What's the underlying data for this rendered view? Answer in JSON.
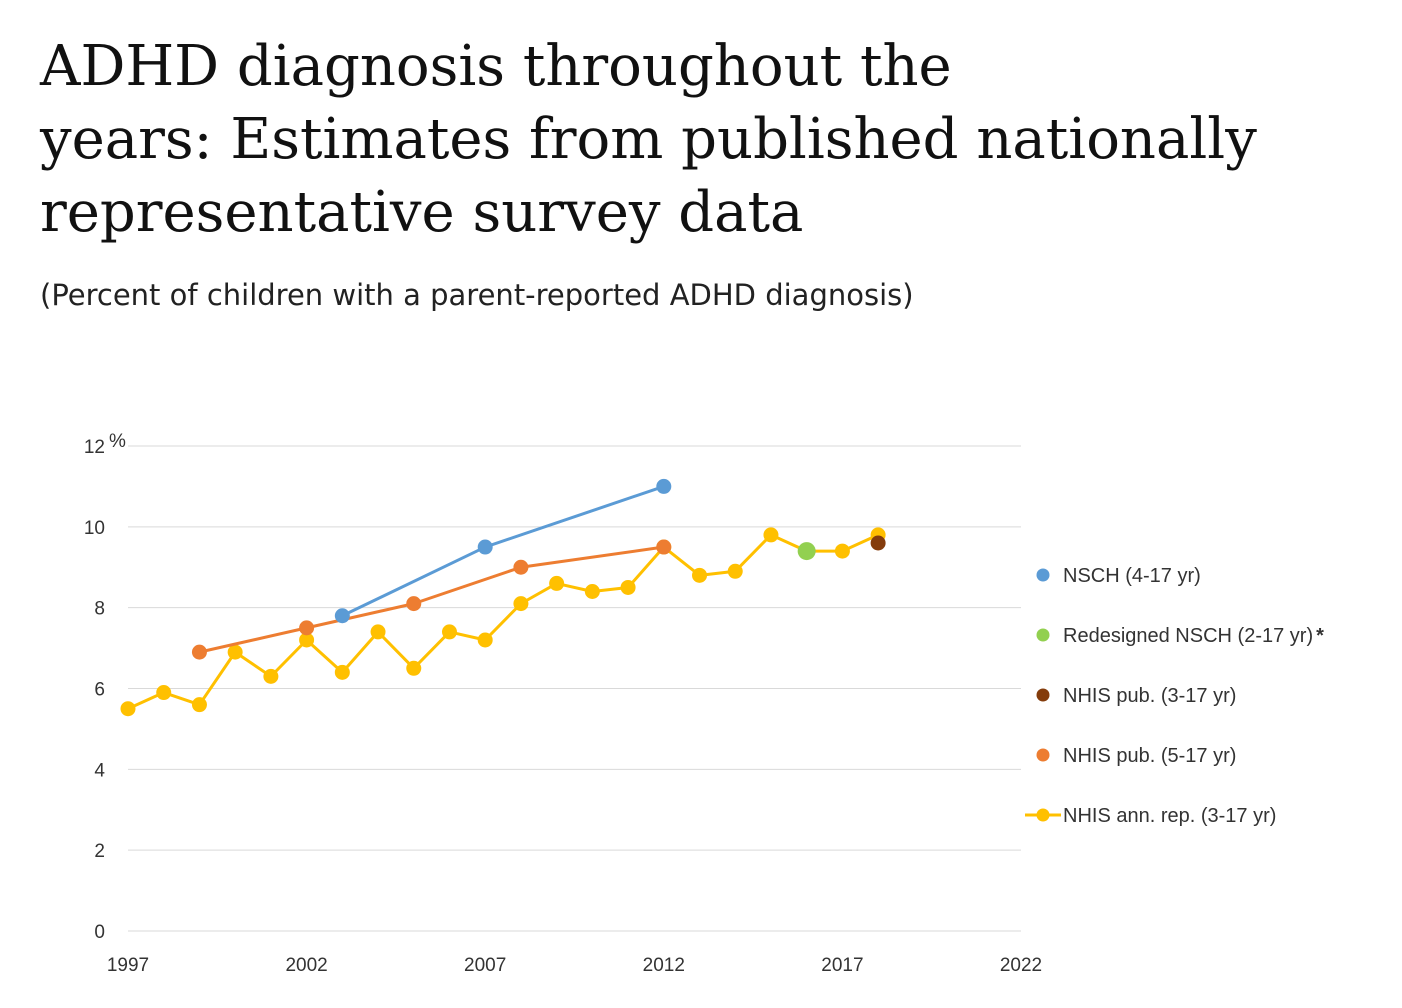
{
  "header": {
    "title_lines": [
      "ADHD diagnosis throughout the",
      "years: Estimates from published nationally",
      "representative survey data"
    ],
    "subtitle": "(Percent of children with a parent-reported ADHD diagnosis)"
  },
  "chart_data": {
    "type": "line",
    "title": "ADHD diagnosis throughout the years: Estimates from published nationally representative survey data",
    "subtitle": "(Percent of children with a parent-reported ADHD diagnosis)",
    "y_unit": "%",
    "xlim": [
      1997,
      2022
    ],
    "ylim": [
      0,
      12
    ],
    "x_ticks": [
      "1997",
      "2002",
      "2007",
      "2012",
      "2017",
      "2022"
    ],
    "y_ticks": [
      "0",
      "2",
      "4",
      "6",
      "8",
      "10",
      "12"
    ],
    "grid": "horizontal",
    "legend_position": "right",
    "series": [
      {
        "name": "NHIS ann. rep. (3-17 yr)",
        "color": "#FFC000",
        "x": [
          1997,
          1998,
          1999,
          2000,
          2001,
          2002,
          2003,
          2004,
          2005,
          2006,
          2007,
          2008,
          2009,
          2010,
          2011,
          2012,
          2013,
          2014,
          2015,
          2016,
          2017,
          2018
        ],
        "y": [
          5.5,
          5.9,
          5.6,
          6.9,
          6.3,
          7.2,
          6.4,
          7.4,
          6.5,
          7.4,
          7.2,
          8.1,
          8.6,
          8.4,
          8.5,
          9.5,
          8.8,
          8.9,
          9.8,
          9.4,
          9.4,
          9.8
        ]
      },
      {
        "name": "NHIS pub. (5-17 yr)",
        "color": "#ED7D31",
        "x": [
          1999,
          2002,
          2005,
          2008,
          2012
        ],
        "y": [
          6.9,
          7.5,
          8.1,
          9.0,
          9.5
        ]
      },
      {
        "name": "NSCH (4-17 yr)",
        "color": "#5B9BD5",
        "x": [
          2003,
          2007,
          2012
        ],
        "y": [
          7.8,
          9.5,
          11.0
        ]
      },
      {
        "name": "Redesigned NSCH (2-17 yr)",
        "legend_marker": "*",
        "color": "#92D050",
        "x": [
          2016
        ],
        "y": [
          9.4
        ]
      },
      {
        "name": "NHIS pub. (3-17 yr)",
        "color": "#843C0C",
        "x": [
          2018
        ],
        "y": [
          9.6
        ]
      }
    ],
    "legend": [
      {
        "label": "NSCH (4-17 yr)",
        "color": "#5B9BD5",
        "style": "dot"
      },
      {
        "label": "Redesigned NSCH (2-17 yr)",
        "suffix": "*",
        "color": "#92D050",
        "style": "dot"
      },
      {
        "label": "NHIS pub. (3-17 yr)",
        "color": "#843C0C",
        "style": "dot"
      },
      {
        "label": "NHIS pub. (5-17 yr)",
        "color": "#ED7D31",
        "style": "dot"
      },
      {
        "label": "NHIS ann. rep. (3-17 yr)",
        "color": "#FFC000",
        "style": "line"
      }
    ],
    "colors": {
      "grid": "#D9D9D9",
      "axis_text": "#333333"
    }
  }
}
